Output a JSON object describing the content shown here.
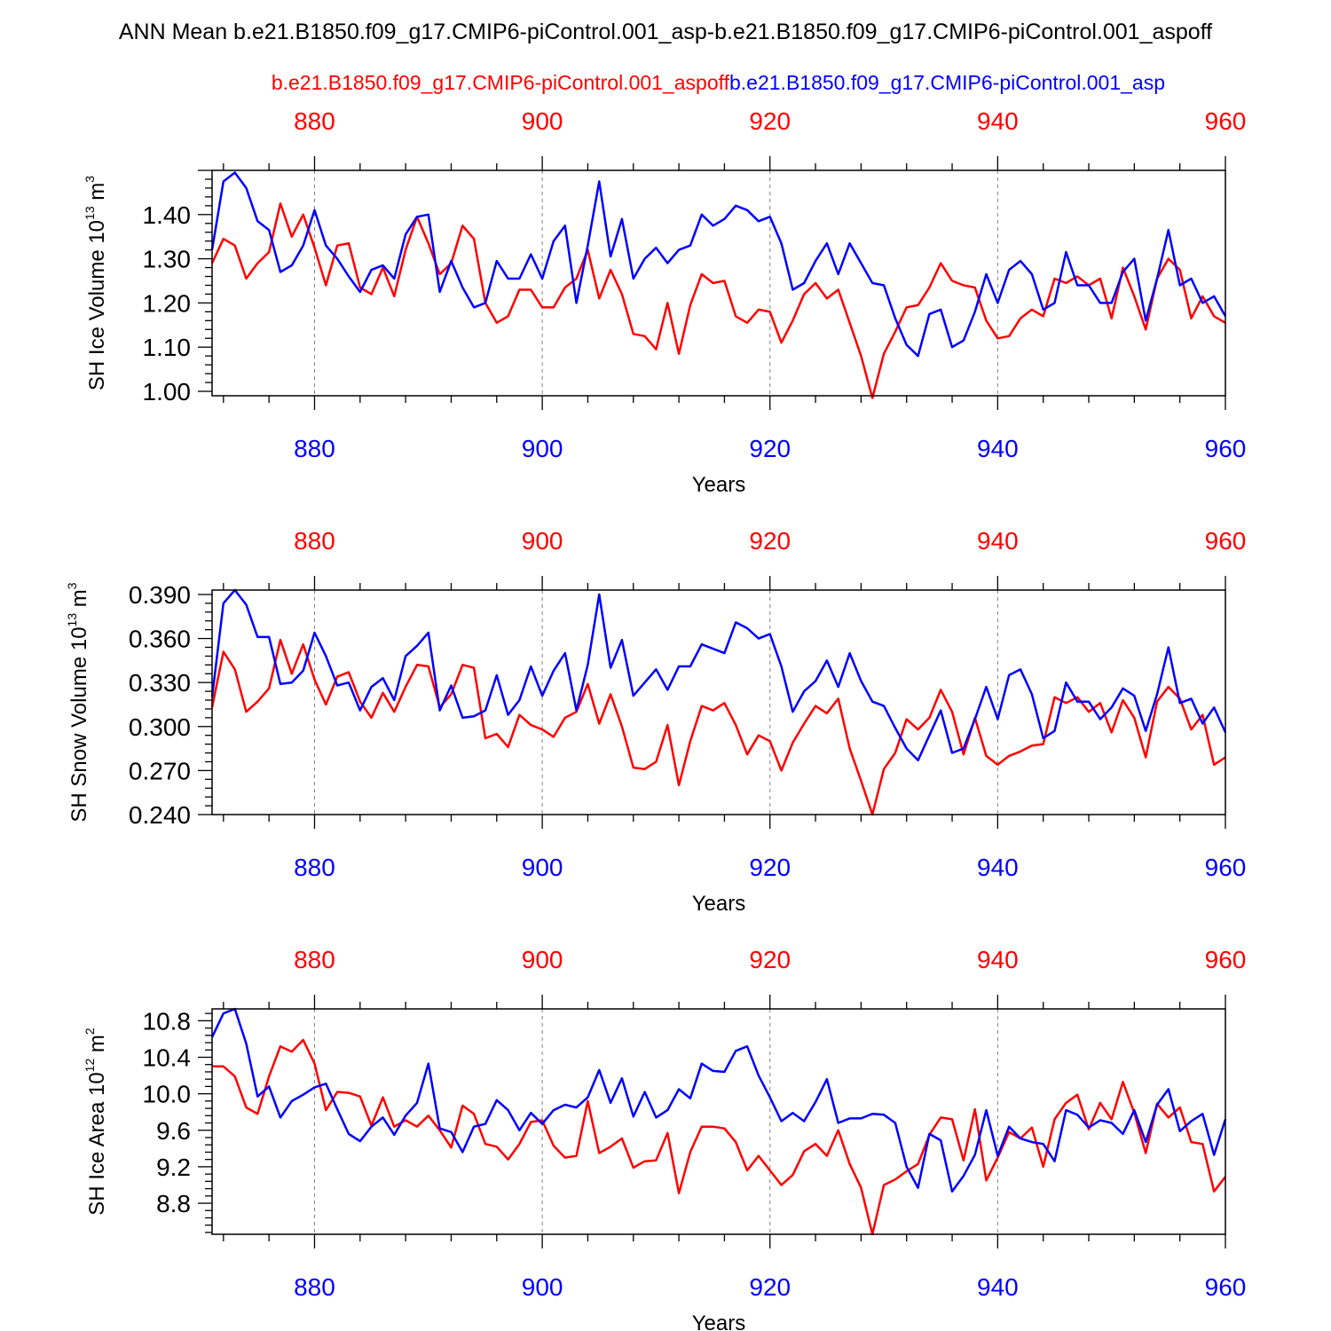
{
  "figure": {
    "title": "ANN Mean b.e21.B1850.f09_g17.CMIP6-piControl.001_asp-b.e21.B1850.f09_g17.CMIP6-piControl.001_aspoff",
    "legend_red": "b.e21.B1850.f09_g17.CMIP6-piControl.001_aspoff",
    "legend_blue": "b.e21.B1850.f09_g17.CMIP6-piControl.001_asp",
    "colors": {
      "red": "#ff0000",
      "blue": "#0000ff",
      "grid": "#808080",
      "axis": "#000000"
    }
  },
  "chart_data": [
    {
      "type": "line",
      "ylabel": "SH Ice Volume",
      "ylabel_unit": "10",
      "ylabel_exp": "13",
      "ylabel_tail": "m",
      "ylabel_tail_exp": "3",
      "xlabel": "Years",
      "xlim": [
        871,
        960
      ],
      "ylim": [
        0.99,
        1.5
      ],
      "yticks": [
        "1.00",
        "1.10",
        "1.20",
        "1.30",
        "1.40"
      ],
      "xticks": [
        "880",
        "900",
        "920",
        "940",
        "960"
      ],
      "grid": "dashed vertical at major x ticks",
      "series": [
        {
          "name": "b.e21.B1850.f09_g17.CMIP6-piControl.001_aspoff",
          "color": "red",
          "values": [
            1.29,
            1.345,
            1.33,
            1.255,
            1.29,
            1.315,
            1.425,
            1.35,
            1.4,
            1.325,
            1.24,
            1.33,
            1.335,
            1.235,
            1.22,
            1.28,
            1.215,
            1.32,
            1.395,
            1.335,
            1.265,
            1.29,
            1.375,
            1.345,
            1.2,
            1.155,
            1.17,
            1.23,
            1.23,
            1.19,
            1.19,
            1.235,
            1.255,
            1.32,
            1.21,
            1.275,
            1.22,
            1.13,
            1.125,
            1.095,
            1.2,
            1.085,
            1.195,
            1.265,
            1.245,
            1.25,
            1.17,
            1.155,
            1.185,
            1.18,
            1.11,
            1.16,
            1.22,
            1.245,
            1.21,
            1.23,
            1.155,
            1.08,
            0.985,
            1.085,
            1.135,
            1.19,
            1.195,
            1.235,
            1.29,
            1.25,
            1.24,
            1.235,
            1.16,
            1.12,
            1.125,
            1.165,
            1.185,
            1.17,
            1.255,
            1.245,
            1.26,
            1.24,
            1.255,
            1.165,
            1.28,
            1.215,
            1.14,
            1.255,
            1.3,
            1.275,
            1.165,
            1.215,
            1.17,
            1.155
          ]
        },
        {
          "name": "b.e21.B1850.f09_g17.CMIP6-piControl.001_asp",
          "color": "blue",
          "values": [
            1.32,
            1.475,
            1.495,
            1.46,
            1.385,
            1.365,
            1.27,
            1.285,
            1.33,
            1.41,
            1.33,
            1.3,
            1.26,
            1.225,
            1.275,
            1.285,
            1.255,
            1.355,
            1.395,
            1.4,
            1.225,
            1.295,
            1.235,
            1.19,
            1.2,
            1.295,
            1.255,
            1.255,
            1.31,
            1.255,
            1.34,
            1.375,
            1.2,
            1.33,
            1.475,
            1.305,
            1.39,
            1.255,
            1.3,
            1.325,
            1.29,
            1.32,
            1.33,
            1.4,
            1.375,
            1.39,
            1.42,
            1.41,
            1.385,
            1.395,
            1.335,
            1.23,
            1.245,
            1.295,
            1.335,
            1.265,
            1.335,
            1.29,
            1.245,
            1.24,
            1.165,
            1.105,
            1.08,
            1.175,
            1.185,
            1.1,
            1.115,
            1.18,
            1.265,
            1.2,
            1.275,
            1.295,
            1.265,
            1.185,
            1.2,
            1.315,
            1.24,
            1.24,
            1.2,
            1.2,
            1.27,
            1.3,
            1.16,
            1.255,
            1.365,
            1.24,
            1.255,
            1.2,
            1.215,
            1.17
          ]
        }
      ]
    },
    {
      "type": "line",
      "ylabel": "SH Snow Volume",
      "ylabel_unit": "10",
      "ylabel_exp": "13",
      "ylabel_tail": "m",
      "ylabel_tail_exp": "3",
      "xlabel": "Years",
      "xlim": [
        871,
        960
      ],
      "ylim": [
        0.24,
        0.393
      ],
      "yticks": [
        "0.240",
        "0.270",
        "0.300",
        "0.330",
        "0.360",
        "0.390"
      ],
      "xticks": [
        "880",
        "900",
        "920",
        "940",
        "960"
      ],
      "grid": "dashed vertical at major x ticks",
      "series": [
        {
          "name": "b.e21.B1850.f09_g17.CMIP6-piControl.001_aspoff",
          "color": "red",
          "values": [
            0.313,
            0.351,
            0.339,
            0.31,
            0.317,
            0.326,
            0.359,
            0.336,
            0.356,
            0.332,
            0.315,
            0.334,
            0.337,
            0.317,
            0.306,
            0.323,
            0.31,
            0.327,
            0.342,
            0.341,
            0.313,
            0.322,
            0.342,
            0.34,
            0.292,
            0.295,
            0.286,
            0.308,
            0.301,
            0.298,
            0.293,
            0.306,
            0.31,
            0.329,
            0.302,
            0.322,
            0.3,
            0.272,
            0.271,
            0.276,
            0.301,
            0.26,
            0.29,
            0.314,
            0.311,
            0.316,
            0.301,
            0.281,
            0.294,
            0.29,
            0.27,
            0.289,
            0.302,
            0.314,
            0.309,
            0.319,
            0.285,
            0.263,
            0.24,
            0.271,
            0.282,
            0.305,
            0.298,
            0.306,
            0.325,
            0.31,
            0.281,
            0.306,
            0.28,
            0.274,
            0.28,
            0.283,
            0.287,
            0.288,
            0.32,
            0.316,
            0.32,
            0.31,
            0.316,
            0.296,
            0.318,
            0.306,
            0.279,
            0.317,
            0.327,
            0.319,
            0.298,
            0.308,
            0.274,
            0.279
          ]
        },
        {
          "name": "b.e21.B1850.f09_g17.CMIP6-piControl.001_asp",
          "color": "blue",
          "values": [
            0.32,
            0.384,
            0.393,
            0.383,
            0.361,
            0.361,
            0.329,
            0.33,
            0.338,
            0.364,
            0.348,
            0.328,
            0.33,
            0.311,
            0.327,
            0.333,
            0.318,
            0.348,
            0.355,
            0.364,
            0.311,
            0.328,
            0.306,
            0.307,
            0.311,
            0.335,
            0.308,
            0.318,
            0.341,
            0.321,
            0.338,
            0.35,
            0.311,
            0.342,
            0.39,
            0.34,
            0.359,
            0.321,
            0.33,
            0.339,
            0.325,
            0.341,
            0.341,
            0.356,
            0.353,
            0.35,
            0.371,
            0.367,
            0.36,
            0.363,
            0.341,
            0.31,
            0.324,
            0.331,
            0.345,
            0.327,
            0.35,
            0.331,
            0.317,
            0.314,
            0.299,
            0.285,
            0.277,
            0.294,
            0.311,
            0.282,
            0.285,
            0.305,
            0.327,
            0.305,
            0.335,
            0.339,
            0.322,
            0.292,
            0.297,
            0.33,
            0.317,
            0.317,
            0.305,
            0.313,
            0.326,
            0.321,
            0.297,
            0.322,
            0.354,
            0.316,
            0.319,
            0.302,
            0.313,
            0.296
          ]
        }
      ]
    },
    {
      "type": "line",
      "ylabel": "SH Ice Area",
      "ylabel_unit": "10",
      "ylabel_exp": "12",
      "ylabel_tail": "m",
      "ylabel_tail_exp": "2",
      "xlabel": "Years",
      "xlim": [
        871,
        960
      ],
      "ylim": [
        8.46,
        10.93
      ],
      "yticks": [
        "8.8",
        "9.2",
        "9.6",
        "10.0",
        "10.4",
        "10.8"
      ],
      "xticks": [
        "880",
        "900",
        "920",
        "940",
        "960"
      ],
      "grid": "dashed vertical at major x ticks",
      "series": [
        {
          "name": "b.e21.B1850.f09_g17.CMIP6-piControl.001_aspoff",
          "color": "red",
          "values": [
            10.3,
            10.3,
            10.19,
            9.85,
            9.78,
            10.19,
            10.52,
            10.46,
            10.59,
            10.33,
            9.82,
            10.02,
            10.01,
            9.97,
            9.65,
            9.96,
            9.64,
            9.71,
            9.64,
            9.76,
            9.6,
            9.41,
            9.87,
            9.78,
            9.45,
            9.42,
            9.28,
            9.45,
            9.69,
            9.71,
            9.43,
            9.3,
            9.32,
            9.92,
            9.35,
            9.42,
            9.51,
            9.19,
            9.26,
            9.27,
            9.57,
            8.91,
            9.36,
            9.64,
            9.64,
            9.62,
            9.47,
            9.16,
            9.32,
            9.16,
            9.0,
            9.11,
            9.37,
            9.45,
            9.32,
            9.6,
            9.23,
            8.97,
            8.46,
            9.0,
            9.06,
            9.15,
            9.23,
            9.55,
            9.74,
            9.72,
            9.27,
            9.83,
            9.05,
            9.3,
            9.58,
            9.51,
            9.63,
            9.2,
            9.72,
            9.9,
            9.99,
            9.61,
            9.9,
            9.72,
            10.13,
            9.79,
            9.35,
            9.89,
            9.74,
            9.85,
            9.47,
            9.45,
            8.93,
            9.09
          ]
        },
        {
          "name": "b.e21.B1850.f09_g17.CMIP6-piControl.001_asp",
          "color": "blue",
          "values": [
            10.62,
            10.88,
            10.93,
            10.55,
            9.97,
            10.08,
            9.74,
            9.92,
            9.99,
            10.07,
            10.11,
            9.83,
            9.56,
            9.48,
            9.64,
            9.74,
            9.55,
            9.76,
            9.9,
            10.33,
            9.62,
            9.58,
            9.36,
            9.64,
            9.67,
            9.93,
            9.82,
            9.6,
            9.79,
            9.67,
            9.82,
            9.88,
            9.85,
            9.96,
            10.26,
            9.9,
            10.17,
            9.75,
            10.02,
            9.74,
            9.82,
            10.05,
            9.95,
            10.33,
            10.25,
            10.24,
            10.47,
            10.52,
            10.2,
            9.96,
            9.7,
            9.79,
            9.7,
            9.91,
            10.16,
            9.68,
            9.73,
            9.73,
            9.78,
            9.77,
            9.68,
            9.2,
            8.97,
            9.56,
            9.49,
            8.93,
            9.1,
            9.33,
            9.82,
            9.32,
            9.64,
            9.51,
            9.47,
            9.45,
            9.26,
            9.82,
            9.77,
            9.63,
            9.71,
            9.68,
            9.56,
            9.82,
            9.47,
            9.88,
            10.05,
            9.59,
            9.7,
            9.78,
            9.33,
            9.72
          ]
        }
      ]
    }
  ]
}
